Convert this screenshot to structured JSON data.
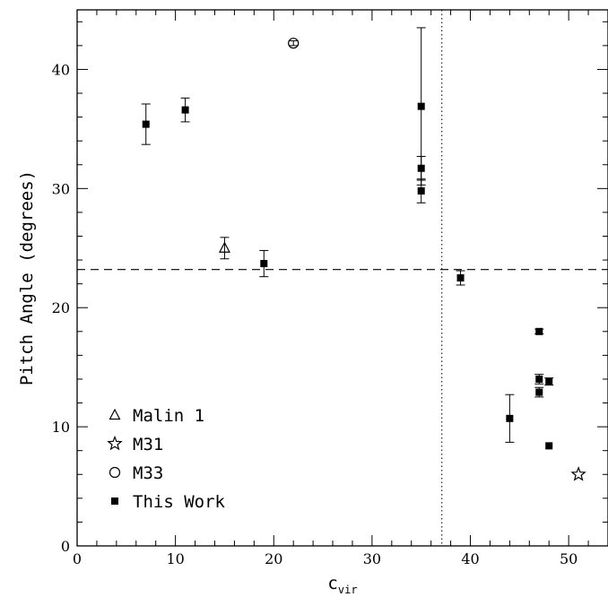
{
  "chart_data": {
    "type": "scatter",
    "xlabel": "c",
    "xlabel_sub": "vir",
    "ylabel": "Pitch Angle (degrees)",
    "xlim": [
      0,
      54
    ],
    "ylim": [
      0,
      45
    ],
    "x_ticks": [
      0,
      10,
      20,
      30,
      40,
      50
    ],
    "y_ticks": [
      0,
      10,
      20,
      30,
      40
    ],
    "hline": 23.2,
    "vline": 37.1,
    "legend_position": "bottom-left",
    "series": [
      {
        "name": "Malin 1",
        "marker": "triangle-open",
        "points": [
          {
            "x": 15,
            "y": 25.0,
            "err": 0.9
          }
        ]
      },
      {
        "name": "M31",
        "marker": "star-open",
        "points": [
          {
            "x": 51,
            "y": 6.0,
            "err": 0
          }
        ]
      },
      {
        "name": "M33",
        "marker": "circle-open",
        "points": [
          {
            "x": 22,
            "y": 42.2,
            "err": 0.2
          }
        ]
      },
      {
        "name": "This Work",
        "marker": "square-filled",
        "points": [
          {
            "x": 7,
            "y": 35.4,
            "err": 1.7
          },
          {
            "x": 11,
            "y": 36.6,
            "err": 1.0
          },
          {
            "x": 19,
            "y": 23.7,
            "err": 1.1
          },
          {
            "x": 35,
            "y": 36.9,
            "err": 6.6
          },
          {
            "x": 35,
            "y": 31.7,
            "err": 1.0
          },
          {
            "x": 35,
            "y": 29.8,
            "err": 1.0
          },
          {
            "x": 39,
            "y": 22.5,
            "err": 0.6
          },
          {
            "x": 44,
            "y": 10.7,
            "err": 2.0
          },
          {
            "x": 47,
            "y": 18.0,
            "err": 0.2
          },
          {
            "x": 47,
            "y": 14.0,
            "err": 0.4
          },
          {
            "x": 47,
            "y": 12.9,
            "err": 0.4
          },
          {
            "x": 48,
            "y": 13.8,
            "err": 0.3
          },
          {
            "x": 48,
            "y": 8.4,
            "err": 0
          }
        ]
      }
    ]
  }
}
